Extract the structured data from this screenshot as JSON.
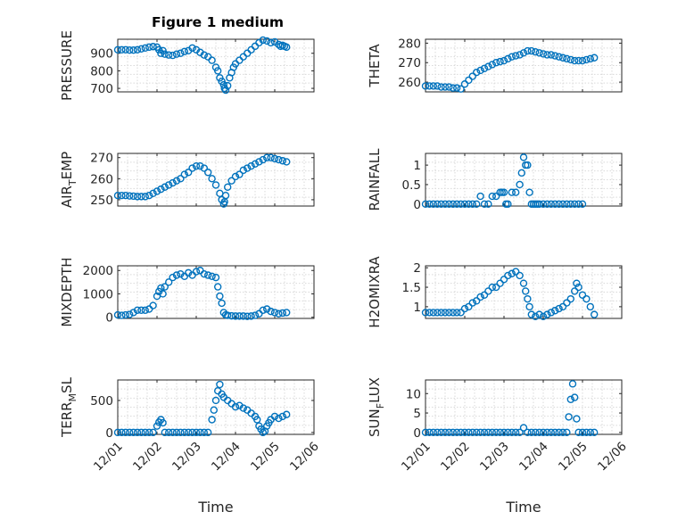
{
  "chart_data": [
    {
      "type": "scatter",
      "title": "Figure 1 medium",
      "ylabel": "PRESSURE",
      "xlabel": "",
      "xlim": [
        0,
        5
      ],
      "ylim": [
        680,
        980
      ],
      "yticks": [
        700,
        800,
        900
      ],
      "xtick_labels": [],
      "grid": "on",
      "x": [
        0.0,
        0.1,
        0.2,
        0.3,
        0.4,
        0.5,
        0.6,
        0.7,
        0.8,
        0.9,
        1.0,
        1.05,
        1.1,
        1.15,
        1.2,
        1.3,
        1.4,
        1.5,
        1.6,
        1.7,
        1.8,
        1.9,
        2.0,
        2.1,
        2.2,
        2.3,
        2.4,
        2.5,
        2.55,
        2.6,
        2.65,
        2.7,
        2.72,
        2.75,
        2.8,
        2.85,
        2.9,
        2.95,
        3.0,
        3.1,
        3.2,
        3.3,
        3.4,
        3.5,
        3.6,
        3.7,
        3.8,
        3.9,
        4.0,
        4.1,
        4.15,
        4.2,
        4.25,
        4.3
      ],
      "y": [
        920,
        920,
        920,
        918,
        918,
        920,
        925,
        930,
        935,
        938,
        935,
        920,
        900,
        915,
        895,
        890,
        888,
        895,
        900,
        910,
        915,
        930,
        920,
        905,
        890,
        880,
        860,
        820,
        800,
        760,
        740,
        720,
        700,
        690,
        715,
        760,
        790,
        820,
        840,
        860,
        880,
        900,
        920,
        940,
        960,
        975,
        970,
        960,
        965,
        950,
        940,
        945,
        940,
        935
      ]
    },
    {
      "type": "scatter",
      "title": "",
      "ylabel": "THETA",
      "xlabel": "",
      "xlim": [
        0,
        5
      ],
      "ylim": [
        255,
        282
      ],
      "yticks": [
        260,
        270,
        280
      ],
      "xtick_labels": [],
      "grid": "on",
      "x": [
        0.0,
        0.1,
        0.2,
        0.3,
        0.4,
        0.5,
        0.6,
        0.7,
        0.8,
        0.9,
        1.0,
        1.1,
        1.2,
        1.3,
        1.4,
        1.5,
        1.6,
        1.7,
        1.8,
        1.9,
        2.0,
        2.1,
        2.2,
        2.3,
        2.4,
        2.5,
        2.6,
        2.7,
        2.8,
        2.9,
        3.0,
        3.1,
        3.2,
        3.3,
        3.4,
        3.5,
        3.6,
        3.7,
        3.8,
        3.9,
        4.0,
        4.1,
        4.2,
        4.3
      ],
      "y": [
        258,
        258,
        258,
        258,
        257.5,
        257.5,
        257.5,
        257,
        257,
        256.5,
        259,
        261,
        263,
        265,
        266,
        267,
        268,
        269,
        270,
        270.5,
        271,
        272,
        273,
        273.5,
        274,
        275,
        276,
        276,
        275.5,
        275,
        274.5,
        274,
        274,
        273.5,
        273,
        272.5,
        272,
        271.5,
        271,
        271,
        271,
        271.5,
        272,
        272.5
      ]
    },
    {
      "type": "scatter",
      "title": "",
      "ylabel": "AIR_TEMP",
      "xlabel": "",
      "xlim": [
        0,
        5
      ],
      "ylim": [
        247,
        272
      ],
      "yticks": [
        250,
        260,
        270
      ],
      "xtick_labels": [],
      "grid": "on",
      "x": [
        0.0,
        0.1,
        0.2,
        0.3,
        0.4,
        0.5,
        0.6,
        0.7,
        0.8,
        0.9,
        1.0,
        1.1,
        1.2,
        1.3,
        1.4,
        1.5,
        1.6,
        1.7,
        1.8,
        1.9,
        2.0,
        2.1,
        2.2,
        2.3,
        2.4,
        2.5,
        2.6,
        2.65,
        2.7,
        2.72,
        2.75,
        2.8,
        2.9,
        3.0,
        3.1,
        3.2,
        3.3,
        3.4,
        3.5,
        3.6,
        3.7,
        3.8,
        3.9,
        4.0,
        4.1,
        4.2,
        4.3
      ],
      "y": [
        252,
        252,
        252,
        251.8,
        251.7,
        251.5,
        251.5,
        251.5,
        252,
        253,
        254,
        255,
        256,
        257,
        258,
        259,
        260,
        262,
        263,
        265,
        266,
        266,
        265,
        263,
        260,
        257,
        253,
        250,
        248,
        249,
        252,
        256,
        259,
        261,
        262,
        264,
        265,
        266,
        267,
        268,
        269,
        270,
        270,
        269.5,
        269,
        268.5,
        268
      ]
    },
    {
      "type": "scatter",
      "title": "",
      "ylabel": "RAINFALL",
      "xlabel": "",
      "xlim": [
        0,
        5
      ],
      "ylim": [
        -0.05,
        1.3
      ],
      "yticks": [
        0,
        0.5,
        1
      ],
      "ytick_labels": [
        "0",
        "0.5",
        "1"
      ],
      "xtick_labels": [],
      "grid": "on",
      "x": [
        0.0,
        0.1,
        0.2,
        0.3,
        0.4,
        0.5,
        0.6,
        0.7,
        0.8,
        0.9,
        1.0,
        1.1,
        1.2,
        1.3,
        1.4,
        1.5,
        1.6,
        1.7,
        1.8,
        1.9,
        1.95,
        2.0,
        2.05,
        2.1,
        2.2,
        2.3,
        2.4,
        2.45,
        2.5,
        2.55,
        2.6,
        2.65,
        2.7,
        2.75,
        2.8,
        2.85,
        2.9,
        3.0,
        3.1,
        3.2,
        3.3,
        3.4,
        3.5,
        3.6,
        3.7,
        3.8,
        3.9,
        4.0
      ],
      "y": [
        0,
        0,
        0,
        0,
        0,
        0,
        0,
        0,
        0,
        0,
        0,
        0,
        0,
        0,
        0.2,
        0,
        0,
        0.2,
        0.2,
        0.3,
        0.3,
        0.3,
        0,
        0,
        0.3,
        0.3,
        0.5,
        0.8,
        1.2,
        1.0,
        1.0,
        0.3,
        0,
        0,
        0,
        0,
        0,
        0,
        0,
        0,
        0,
        0,
        0,
        0,
        0,
        0,
        0,
        0
      ]
    },
    {
      "type": "scatter",
      "title": "",
      "ylabel": "MIXDEPTH",
      "xlabel": "",
      "xlim": [
        0,
        5
      ],
      "ylim": [
        -50,
        2200
      ],
      "yticks": [
        0,
        1000,
        2000
      ],
      "xtick_labels": [],
      "grid": "on",
      "x": [
        0.0,
        0.1,
        0.2,
        0.3,
        0.4,
        0.5,
        0.6,
        0.7,
        0.8,
        0.9,
        1.0,
        1.05,
        1.1,
        1.15,
        1.2,
        1.3,
        1.4,
        1.5,
        1.6,
        1.7,
        1.8,
        1.9,
        2.0,
        2.1,
        2.2,
        2.3,
        2.4,
        2.5,
        2.55,
        2.6,
        2.65,
        2.7,
        2.75,
        2.8,
        2.9,
        3.0,
        3.1,
        3.2,
        3.3,
        3.4,
        3.5,
        3.6,
        3.7,
        3.8,
        3.9,
        4.0,
        4.1,
        4.2,
        4.3
      ],
      "y": [
        100,
        80,
        100,
        120,
        200,
        300,
        300,
        300,
        350,
        500,
        900,
        1100,
        1250,
        1000,
        1300,
        1500,
        1700,
        1800,
        1850,
        1750,
        1900,
        1800,
        1950,
        2000,
        1850,
        1800,
        1750,
        1700,
        1300,
        900,
        600,
        200,
        100,
        80,
        60,
        50,
        50,
        50,
        40,
        50,
        80,
        150,
        300,
        350,
        250,
        200,
        150,
        180,
        200
      ]
    },
    {
      "type": "scatter",
      "title": "",
      "ylabel": "H2OMIXRA",
      "xlabel": "",
      "xlim": [
        0,
        5
      ],
      "ylim": [
        0.7,
        2.05
      ],
      "yticks": [
        1,
        1.5,
        2
      ],
      "ytick_labels": [
        "1",
        "1.5",
        "2"
      ],
      "xtick_labels": [],
      "grid": "on",
      "x": [
        0.0,
        0.1,
        0.2,
        0.3,
        0.4,
        0.5,
        0.6,
        0.7,
        0.8,
        0.9,
        1.0,
        1.1,
        1.2,
        1.3,
        1.4,
        1.5,
        1.6,
        1.7,
        1.8,
        1.9,
        2.0,
        2.1,
        2.2,
        2.3,
        2.4,
        2.5,
        2.55,
        2.6,
        2.65,
        2.7,
        2.8,
        2.9,
        3.0,
        3.1,
        3.2,
        3.3,
        3.4,
        3.5,
        3.6,
        3.7,
        3.8,
        3.85,
        3.9,
        4.0,
        4.1,
        4.2,
        4.3
      ],
      "y": [
        0.85,
        0.85,
        0.85,
        0.85,
        0.85,
        0.85,
        0.85,
        0.85,
        0.85,
        0.85,
        0.95,
        1.0,
        1.1,
        1.15,
        1.25,
        1.3,
        1.4,
        1.5,
        1.5,
        1.6,
        1.7,
        1.8,
        1.85,
        1.9,
        1.8,
        1.6,
        1.4,
        1.2,
        1.0,
        0.8,
        0.75,
        0.8,
        0.75,
        0.8,
        0.85,
        0.9,
        0.95,
        1.0,
        1.1,
        1.2,
        1.4,
        1.6,
        1.5,
        1.3,
        1.2,
        1.0,
        0.8
      ]
    },
    {
      "type": "scatter",
      "title": "",
      "ylabel": "TERR_MSL",
      "xlabel": "Time",
      "xlim": [
        0,
        5
      ],
      "ylim": [
        -30,
        820
      ],
      "yticks": [
        0,
        500
      ],
      "xtick_labels": [
        "12/01",
        "12/02",
        "12/03",
        "12/04",
        "12/05",
        "12/06"
      ],
      "grid": "on",
      "x": [
        0.0,
        0.1,
        0.2,
        0.3,
        0.4,
        0.5,
        0.6,
        0.7,
        0.8,
        0.9,
        1.0,
        1.05,
        1.1,
        1.15,
        1.2,
        1.3,
        1.4,
        1.5,
        1.6,
        1.7,
        1.8,
        1.9,
        2.0,
        2.1,
        2.2,
        2.3,
        2.4,
        2.45,
        2.5,
        2.55,
        2.6,
        2.65,
        2.7,
        2.8,
        2.9,
        3.0,
        3.1,
        3.2,
        3.3,
        3.4,
        3.5,
        3.55,
        3.6,
        3.65,
        3.7,
        3.75,
        3.8,
        3.85,
        3.9,
        4.0,
        4.1,
        4.2,
        4.3
      ],
      "y": [
        0,
        0,
        0,
        0,
        0,
        0,
        0,
        0,
        0,
        0,
        100,
        160,
        200,
        150,
        0,
        0,
        0,
        0,
        0,
        0,
        0,
        0,
        0,
        0,
        0,
        0,
        200,
        350,
        500,
        650,
        750,
        600,
        550,
        500,
        450,
        400,
        420,
        380,
        350,
        300,
        250,
        200,
        100,
        50,
        0,
        20,
        100,
        150,
        200,
        250,
        220,
        250,
        280
      ]
    },
    {
      "type": "scatter",
      "title": "",
      "ylabel": "SUN_FLUX",
      "xlabel": "Time",
      "xlim": [
        0,
        5
      ],
      "ylim": [
        -0.5,
        13.5
      ],
      "yticks": [
        0,
        5,
        10
      ],
      "xtick_labels": [
        "12/01",
        "12/02",
        "12/03",
        "12/04",
        "12/05",
        "12/06"
      ],
      "grid": "on",
      "x": [
        0.0,
        0.1,
        0.2,
        0.3,
        0.4,
        0.5,
        0.6,
        0.7,
        0.8,
        0.9,
        1.0,
        1.1,
        1.2,
        1.3,
        1.4,
        1.5,
        1.6,
        1.7,
        1.8,
        1.9,
        2.0,
        2.1,
        2.2,
        2.3,
        2.4,
        2.5,
        2.6,
        2.7,
        2.8,
        2.9,
        3.0,
        3.1,
        3.2,
        3.3,
        3.4,
        3.5,
        3.6,
        3.65,
        3.7,
        3.75,
        3.8,
        3.85,
        3.9,
        4.0,
        4.1,
        4.2,
        4.3
      ],
      "y": [
        0,
        0,
        0,
        0,
        0,
        0,
        0,
        0,
        0,
        0,
        0,
        0,
        0,
        0,
        0,
        0,
        0,
        0,
        0,
        0,
        0,
        0,
        0,
        0,
        0,
        1.2,
        0,
        0,
        0,
        0,
        0,
        0,
        0,
        0,
        0,
        0,
        0,
        4,
        8.5,
        12.5,
        9,
        3.5,
        0,
        0,
        0,
        0,
        0
      ]
    }
  ]
}
